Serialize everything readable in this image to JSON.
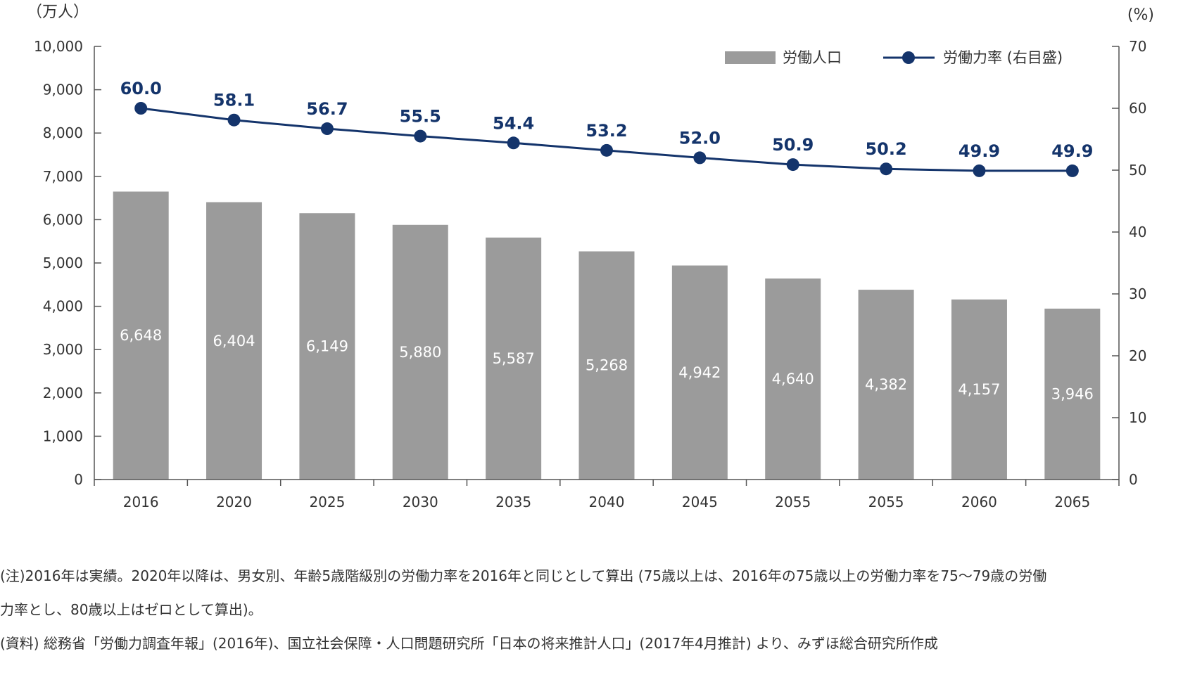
{
  "chart_data": {
    "type": "bar",
    "categories": [
      "2016",
      "2020",
      "2025",
      "2030",
      "2035",
      "2040",
      "2045",
      "2055",
      "2055",
      "2060",
      "2065"
    ],
    "series": [
      {
        "name": "労働人口",
        "type": "bar",
        "axis": "left",
        "color": "#9b9b9b",
        "values": [
          6648,
          6404,
          6149,
          5880,
          5587,
          5268,
          4942,
          4640,
          4382,
          4157,
          3946
        ],
        "labels": [
          "6,648",
          "6,404",
          "6,149",
          "5,880",
          "5,587",
          "5,268",
          "4,942",
          "4,640",
          "4,382",
          "4,157",
          "3,946"
        ]
      },
      {
        "name": "労働力率 (右目盛)",
        "type": "line",
        "axis": "right",
        "color": "#14346b",
        "values": [
          60.0,
          58.1,
          56.7,
          55.5,
          54.4,
          53.2,
          52.0,
          50.9,
          50.2,
          49.9,
          49.9
        ],
        "labels": [
          "60.0",
          "58.1",
          "56.7",
          "55.5",
          "54.4",
          "53.2",
          "52.0",
          "50.9",
          "50.2",
          "49.9",
          "49.9"
        ]
      }
    ],
    "y_left": {
      "unit": "（万人）",
      "ylim": [
        0,
        10000
      ],
      "ticks": [
        "0",
        "1,000",
        "2,000",
        "3,000",
        "4,000",
        "5,000",
        "6,000",
        "7,000",
        "8,000",
        "9,000",
        "10,000"
      ]
    },
    "y_right": {
      "unit": "(%)",
      "ylim": [
        0,
        70
      ],
      "ticks": [
        "0",
        "10",
        "20",
        "30",
        "40",
        "50",
        "60",
        "70"
      ]
    },
    "grid": false,
    "legend_position": "top-right"
  },
  "notes": {
    "note_line1": "(注)2016年は実績。2020年以降は、男女別、年齢5歳階級別の労働力率を2016年と同じとして算出 (75歳以上は、2016年の75歳以上の労働力率を75～79歳の労働",
    "note_line2": "力率とし、80歳以上はゼロとして算出)。",
    "source": "(資料) 総務省「労働力調査年報」(2016年)、国立社会保障・人口問題研究所「日本の将来推計人口」(2017年4月推計) より、みずほ総合研究所作成"
  }
}
